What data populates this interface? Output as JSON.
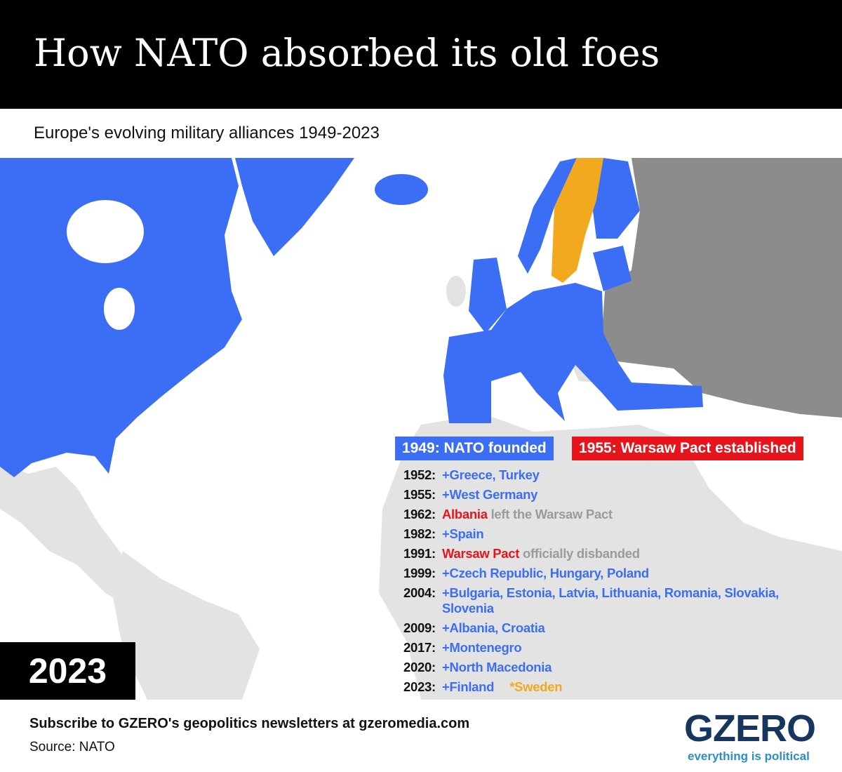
{
  "header": {
    "title": "How NATO absorbed its old foes",
    "subtitle": "Europe's evolving military alliances 1949-2023"
  },
  "legend": [
    "1949: NATO founded",
    "1955: Warsaw Pact established"
  ],
  "timeline": [
    {
      "year": "1952:",
      "parts": [
        "+Greece, Turkey"
      ]
    },
    {
      "year": "1955:",
      "parts": [
        "+West Germany"
      ]
    },
    {
      "year": "1962:",
      "parts": [
        "Albania",
        "left the Warsaw Pact"
      ]
    },
    {
      "year": "1982:",
      "parts": [
        "+Spain"
      ]
    },
    {
      "year": "1991:",
      "parts": [
        "Warsaw Pact",
        "officially disbanded"
      ]
    },
    {
      "year": "1999:",
      "parts": [
        "+Czech Republic, Hungary, Poland"
      ]
    },
    {
      "year": "2004:",
      "parts": [
        "+Bulgaria, Estonia, Latvia, Lithuania, Romania, Slovakia, Slovenia"
      ]
    },
    {
      "year": "2009:",
      "parts": [
        "+Albania, Croatia"
      ]
    },
    {
      "year": "2017:",
      "parts": [
        "+Montenegro"
      ]
    },
    {
      "year": "2020:",
      "parts": [
        "+North Macedonia"
      ]
    },
    {
      "year": "2023:",
      "parts": [
        "+Finland",
        "*Sweden"
      ]
    }
  ],
  "year_label": "2023",
  "footer": {
    "subscribe": "Subscribe to GZERO's geopolitics newsletters at gzeromedia.com",
    "source": "Source: NATO"
  },
  "logo": {
    "name": "GZERO",
    "tagline": "everything is political"
  }
}
